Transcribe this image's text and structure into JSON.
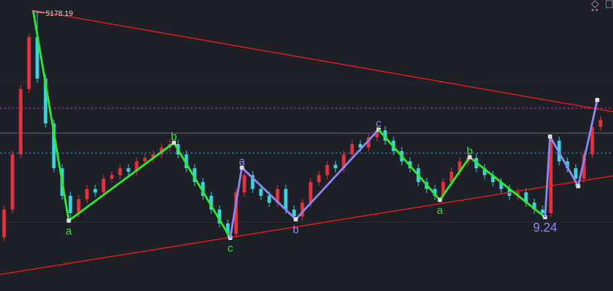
{
  "chart_data": {
    "type": "candlestick",
    "xlim": [
      0,
      72
    ],
    "ylim": [
      4364,
      5208
    ],
    "up_color": "#e8303a",
    "down_color": "#3ad6e0",
    "open": [
      4520,
      4600,
      4760,
      4950,
      5100,
      4980,
      4850,
      4720,
      4640,
      4590,
      4630,
      4660,
      4650,
      4690,
      4700,
      4720,
      4710,
      4740,
      4750,
      4760,
      4780,
      4790,
      4760,
      4720,
      4680,
      4640,
      4600,
      4560,
      4530,
      4650,
      4700,
      4660,
      4640,
      4620,
      4660,
      4600,
      4580,
      4620,
      4680,
      4700,
      4730,
      4720,
      4760,
      4790,
      4780,
      4810,
      4830,
      4800,
      4770,
      4740,
      4720,
      4680,
      4660,
      4640,
      4680,
      4710,
      4740,
      4750,
      4720,
      4700,
      4680,
      4660,
      4640,
      4650,
      4620,
      4600,
      4590,
      4800,
      4740,
      4720,
      4690,
      4760,
      4840
    ],
    "high": [
      4612,
      4772,
      4962,
      5112,
      5178.19,
      4992,
      4862,
      4732,
      4652,
      4642,
      4672,
      4672,
      4702,
      4712,
      4732,
      4732,
      4752,
      4762,
      4772,
      4792,
      4802,
      4802,
      4772,
      4732,
      4692,
      4652,
      4612,
      4572,
      4662,
      4722,
      4712,
      4672,
      4652,
      4672,
      4672,
      4612,
      4632,
      4692,
      4712,
      4742,
      4742,
      4772,
      4802,
      4802,
      4822,
      4842,
      4842,
      4812,
      4782,
      4752,
      4732,
      4692,
      4672,
      4692,
      4722,
      4752,
      4762,
      4762,
      4732,
      4712,
      4692,
      4672,
      4662,
      4662,
      4632,
      4612,
      4812,
      4812,
      4752,
      4732,
      4772,
      4852,
      4872
    ],
    "low": [
      4508,
      4588,
      4748,
      4938,
      4968,
      4838,
      4708,
      4628,
      4568,
      4578,
      4618,
      4638,
      4638,
      4678,
      4688,
      4698,
      4698,
      4728,
      4738,
      4748,
      4768,
      4748,
      4708,
      4668,
      4628,
      4588,
      4548,
      4518,
      4518,
      4638,
      4648,
      4628,
      4608,
      4608,
      4588,
      4568,
      4568,
      4608,
      4668,
      4688,
      4708,
      4708,
      4748,
      4768,
      4768,
      4798,
      4788,
      4758,
      4728,
      4708,
      4668,
      4648,
      4628,
      4628,
      4668,
      4698,
      4728,
      4708,
      4688,
      4668,
      4648,
      4628,
      4628,
      4608,
      4588,
      4578,
      4578,
      4728,
      4708,
      4668,
      4678,
      4748,
      4828
    ],
    "close": [
      4600,
      4760,
      4950,
      5100,
      4980,
      4850,
      4720,
      4640,
      4590,
      4630,
      4660,
      4650,
      4690,
      4700,
      4720,
      4710,
      4740,
      4750,
      4760,
      4780,
      4790,
      4760,
      4720,
      4680,
      4640,
      4600,
      4560,
      4530,
      4650,
      4700,
      4660,
      4640,
      4620,
      4660,
      4600,
      4580,
      4620,
      4680,
      4700,
      4730,
      4720,
      4760,
      4790,
      4780,
      4810,
      4830,
      4800,
      4770,
      4740,
      4720,
      4680,
      4660,
      4640,
      4680,
      4710,
      4740,
      4750,
      4720,
      4700,
      4680,
      4660,
      4640,
      4650,
      4620,
      4600,
      4590,
      4800,
      4740,
      4720,
      4690,
      4760,
      4840,
      4860
    ],
    "levels": [
      {
        "value": 4894,
        "color": "#b03cb0",
        "dashed": true
      },
      {
        "value": 4822,
        "color": "#6a6c74",
        "dashed": false
      },
      {
        "value": 4764,
        "color": "#3f8fb8",
        "dashed": true
      }
    ],
    "trendlines": [
      {
        "color": "#e51c1c",
        "x": [
          3.5,
          73.5
        ],
        "values": [
          5178,
          4884
        ]
      },
      {
        "color": "#e51c1c",
        "x": [
          -0.5,
          73.5
        ],
        "values": [
          4412,
          4698
        ]
      }
    ],
    "waves": [
      {
        "color": "#2ee82e",
        "x": [
          3.5,
          7.8,
          20.5,
          27.3
        ],
        "values": [
          5178,
          4568,
          4794,
          4518
        ],
        "labels": [
          null,
          "a",
          "b",
          "c"
        ]
      },
      {
        "color": "#8a86f0",
        "x": [
          27.3,
          28.7,
          35.2,
          45.2
        ],
        "values": [
          4518,
          4722,
          4572,
          4832
        ],
        "labels": [
          null,
          "a",
          "b",
          "c"
        ]
      },
      {
        "color": "#2ee82e",
        "x": [
          45.2,
          52.6,
          56.2,
          65.3
        ],
        "values": [
          4832,
          4628,
          4752,
          4578
        ],
        "labels": [
          null,
          "a",
          "b",
          null
        ]
      },
      {
        "color": "#8a86f0",
        "x": [
          65.3,
          65.9,
          69.3,
          71.6
        ],
        "values": [
          4578,
          4812,
          4668,
          4918
        ],
        "labels": [
          "9.24",
          null,
          null,
          null
        ]
      }
    ]
  }
}
